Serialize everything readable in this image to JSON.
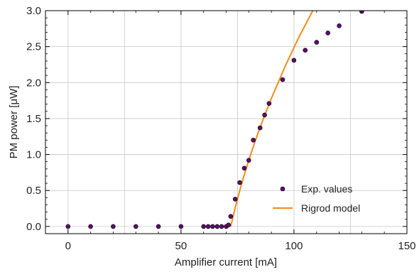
{
  "chart_data": {
    "type": "scatter",
    "title": "",
    "xlabel": "Amplifier current [mA]",
    "ylabel": "PM power [μW]",
    "xlim": [
      -10,
      150
    ],
    "ylim": [
      -0.1,
      3.0
    ],
    "xticks": [
      0,
      50,
      100,
      150
    ],
    "yticks": [
      0.0,
      0.5,
      1.0,
      1.5,
      2.0,
      2.5,
      3.0
    ],
    "ytick_labels": [
      "0.0",
      "0.5",
      "1.0",
      "1.5",
      "2.0",
      "2.5",
      "3.0"
    ],
    "xtick_labels": [
      "0",
      "50",
      "100",
      "150"
    ],
    "grid": true,
    "legend": {
      "placement": "bottom-right"
    },
    "series": [
      {
        "name": "Exp. values",
        "kind": "scatter",
        "color": "#5b0f6b",
        "x": [
          0,
          10,
          20,
          30,
          40,
          50,
          60,
          62,
          64,
          66,
          68,
          70,
          71,
          72,
          74,
          76,
          78,
          80,
          82,
          85,
          87,
          89,
          95,
          100,
          105,
          110,
          115,
          120,
          130
        ],
        "y": [
          0,
          0,
          0,
          0,
          0,
          0,
          0,
          0,
          0,
          0,
          0,
          0,
          0.02,
          0.14,
          0.38,
          0.61,
          0.81,
          0.92,
          1.2,
          1.37,
          1.55,
          1.71,
          2.04,
          2.31,
          2.45,
          2.56,
          2.69,
          2.79,
          2.99
        ]
      },
      {
        "name": "Rigrod model",
        "kind": "line",
        "color": "#f28c1a",
        "x": [
          72,
          74,
          76,
          78,
          80,
          82,
          84,
          86,
          88,
          90,
          93,
          96,
          99,
          102,
          105,
          108,
          110
        ],
        "y": [
          0.0,
          0.26,
          0.5,
          0.72,
          0.92,
          1.11,
          1.29,
          1.46,
          1.62,
          1.78,
          2.0,
          2.22,
          2.42,
          2.62,
          2.8,
          2.98,
          3.08
        ]
      }
    ]
  }
}
